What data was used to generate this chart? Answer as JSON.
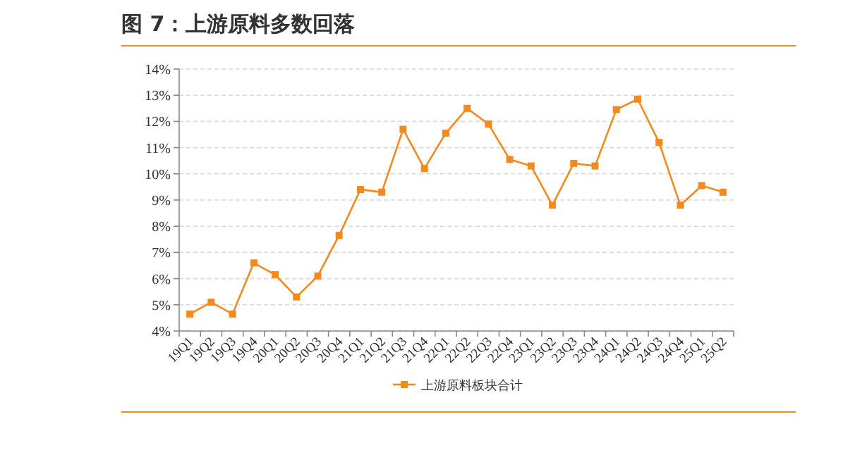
{
  "chart_data": {
    "type": "line",
    "title": "图 7：上游原料多数回落",
    "categories": [
      "19Q1",
      "19Q2",
      "19Q3",
      "19Q4",
      "20Q1",
      "20Q2",
      "20Q3",
      "20Q4",
      "21Q1",
      "21Q2",
      "21Q3",
      "21Q4",
      "22Q1",
      "22Q2",
      "22Q3",
      "22Q4",
      "23Q1",
      "23Q2",
      "23Q3",
      "23Q4",
      "24Q1",
      "24Q2",
      "24Q3",
      "24Q4",
      "25Q1",
      "25Q2"
    ],
    "series": [
      {
        "name": "上游原料板块合计",
        "color": "#f28a1e",
        "values": [
          4.65,
          5.1,
          4.65,
          6.6,
          6.15,
          5.3,
          6.1,
          7.65,
          9.4,
          9.3,
          11.7,
          10.2,
          11.55,
          12.5,
          11.9,
          10.55,
          10.3,
          8.8,
          10.4,
          10.3,
          12.45,
          12.85,
          11.2,
          8.8,
          9.55,
          9.3
        ]
      }
    ],
    "ylim": [
      4,
      14
    ],
    "yticks": [
      {
        "value": 4,
        "label": "4%"
      },
      {
        "value": 5,
        "label": "5%"
      },
      {
        "value": 6,
        "label": "6%"
      },
      {
        "value": 7,
        "label": "7%"
      },
      {
        "value": 8,
        "label": "8%"
      },
      {
        "value": 9,
        "label": "9%"
      },
      {
        "value": 10,
        "label": "10%"
      },
      {
        "value": 11,
        "label": "11%"
      },
      {
        "value": 12,
        "label": "12%"
      },
      {
        "value": 13,
        "label": "13%"
      },
      {
        "value": 14,
        "label": "14%"
      }
    ],
    "grid": "y",
    "legend": "bottom",
    "marker": "square",
    "line_style": "solid"
  }
}
